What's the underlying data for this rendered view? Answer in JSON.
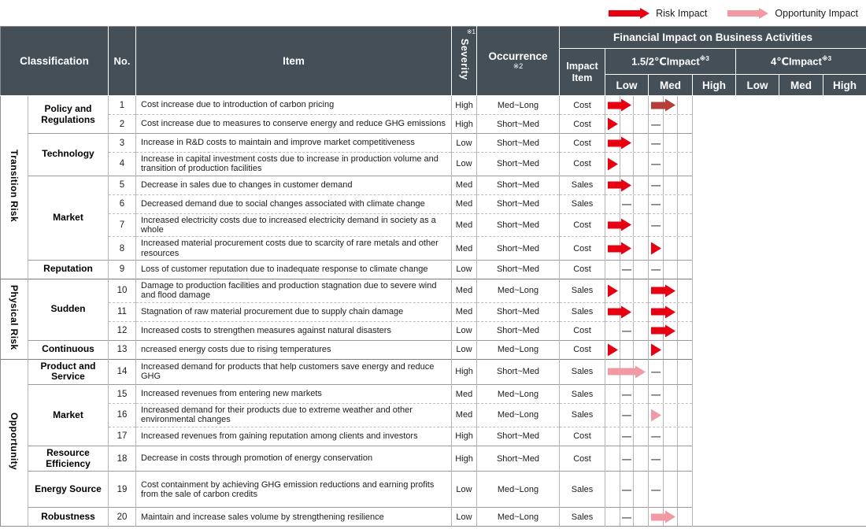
{
  "legend": {
    "risk_label": "Risk Impact",
    "opportunity_label": "Opportunity Impact"
  },
  "colors": {
    "risk": "#e60012",
    "risk_dark": "#b43f3a",
    "opportunity": "#f29aa3",
    "header_bg": "#454f58"
  },
  "marks": {
    "none": "—"
  },
  "header": {
    "classification": "Classification",
    "no": "No.",
    "item": "Item",
    "severity": "Severity",
    "severity_note": "※1",
    "occurrence": "Occurrence",
    "occurrence_note": "※2",
    "financial": "Financial Impact on Business Activities",
    "impact_item": "Impact Item",
    "scenario_15": "1.5/2℃Impact",
    "scenario_4": "4℃Impact",
    "scenario_note": "※3",
    "levels": [
      "Low",
      "Med",
      "High"
    ]
  },
  "groups": [
    {
      "classification": "Transition Risk",
      "subgroups": [
        {
          "label": "Policy and Regulations",
          "rows": [
            {
              "no": "1",
              "item": "Cost increase due to introduction of carbon pricing",
              "severity": "High",
              "occurrence": "Med~Long",
              "impact_item": "Cost",
              "impact_15": {
                "arrow": "risk",
                "span": 2
              },
              "impact_4": {
                "arrow": "risk-dark",
                "span": 2
              }
            },
            {
              "no": "2",
              "item": "Cost increase due to measures to conserve energy and reduce GHG emissions",
              "severity": "High",
              "occurrence": "Short~Med",
              "impact_item": "Cost",
              "impact_15": {
                "arrow": "risk",
                "span": 1
              },
              "impact_4": {
                "arrow": "none"
              }
            }
          ]
        },
        {
          "label": "Technology",
          "rows": [
            {
              "no": "3",
              "item": "Increase in R&D costs to maintain and improve market competitiveness",
              "severity": "Low",
              "occurrence": "Short~Med",
              "impact_item": "Cost",
              "impact_15": {
                "arrow": "risk",
                "span": 2
              },
              "impact_4": {
                "arrow": "none"
              }
            },
            {
              "no": "4",
              "item": "Increase in capital investment costs due to increase in production volume and transition of production facilities",
              "severity": "Low",
              "occurrence": "Short~Med",
              "impact_item": "Cost",
              "impact_15": {
                "arrow": "risk",
                "span": 1
              },
              "impact_4": {
                "arrow": "none"
              }
            }
          ]
        },
        {
          "label": "Market",
          "rows": [
            {
              "no": "5",
              "item": "Decrease in sales due to changes in customer demand",
              "severity": "Med",
              "occurrence": "Short~Med",
              "impact_item": "Sales",
              "impact_15": {
                "arrow": "risk",
                "span": 2
              },
              "impact_4": {
                "arrow": "none"
              }
            },
            {
              "no": "6",
              "item": "Decreased demand due to social changes associated with climate change",
              "severity": "Med",
              "occurrence": "Short~Med",
              "impact_item": "Sales",
              "impact_15": {
                "arrow": "none"
              },
              "impact_4": {
                "arrow": "none"
              }
            },
            {
              "no": "7",
              "item": "Increased electricity costs due to increased electricity demand in society as a whole",
              "severity": "Med",
              "occurrence": "Short~Med",
              "impact_item": "Cost",
              "impact_15": {
                "arrow": "risk",
                "span": 2
              },
              "impact_4": {
                "arrow": "none"
              }
            },
            {
              "no": "8",
              "item": "Increased material procurement costs due to scarcity of rare metals and other resources",
              "severity": "Med",
              "occurrence": "Short~Med",
              "impact_item": "Cost",
              "impact_15": {
                "arrow": "risk",
                "span": 2
              },
              "impact_4": {
                "arrow": "risk",
                "span": 1
              }
            }
          ]
        },
        {
          "label": "Reputation",
          "rows": [
            {
              "no": "9",
              "item": "Loss of customer reputation due to inadequate response to climate change",
              "severity": "Low",
              "occurrence": "Short~Med",
              "impact_item": "Cost",
              "impact_15": {
                "arrow": "none"
              },
              "impact_4": {
                "arrow": "none"
              }
            }
          ]
        }
      ]
    },
    {
      "classification": "Physical Risk",
      "subgroups": [
        {
          "label": "Sudden",
          "rows": [
            {
              "no": "10",
              "item": "Damage to production facilities and production stagnation due to severe wind and flood damage",
              "severity": "Med",
              "occurrence": "Med~Long",
              "impact_item": "Sales",
              "impact_15": {
                "arrow": "risk",
                "span": 1
              },
              "impact_4": {
                "arrow": "risk",
                "span": 2
              }
            },
            {
              "no": "11",
              "item": "Stagnation of raw material procurement due to supply chain damage",
              "severity": "Med",
              "occurrence": "Short~Med",
              "impact_item": "Sales",
              "impact_15": {
                "arrow": "risk",
                "span": 2
              },
              "impact_4": {
                "arrow": "risk",
                "span": 2
              }
            },
            {
              "no": "12",
              "item": "Increased costs to strengthen measures against natural disasters",
              "severity": "Low",
              "occurrence": "Short~Med",
              "impact_item": "Cost",
              "impact_15": {
                "arrow": "none"
              },
              "impact_4": {
                "arrow": "risk",
                "span": 2
              }
            }
          ]
        },
        {
          "label": "Continuous",
          "rows": [
            {
              "no": "13",
              "item": "ncreased energy costs due to rising temperatures",
              "severity": "Low",
              "occurrence": "Med~Long",
              "impact_item": "Cost",
              "impact_15": {
                "arrow": "risk",
                "span": 1
              },
              "impact_4": {
                "arrow": "risk",
                "span": 1
              }
            }
          ]
        }
      ]
    },
    {
      "classification": "Opportunity",
      "subgroups": [
        {
          "label": "Product and Service",
          "rows": [
            {
              "no": "14",
              "item": "Increased demand for products that help customers save energy and reduce GHG",
              "severity": "High",
              "occurrence": "Short~Med",
              "impact_item": "Sales",
              "impact_15": {
                "arrow": "opportunity",
                "span": 3
              },
              "impact_4": {
                "arrow": "none"
              }
            }
          ]
        },
        {
          "label": "Market",
          "rows": [
            {
              "no": "15",
              "item": "Increased revenues from entering new markets",
              "severity": "Med",
              "occurrence": "Med~Long",
              "impact_item": "Sales",
              "impact_15": {
                "arrow": "none"
              },
              "impact_4": {
                "arrow": "none"
              }
            },
            {
              "no": "16",
              "item": "Increased demand for their products due to extreme weather and other environmental changes",
              "severity": "Med",
              "occurrence": "Med~Long",
              "impact_item": "Sales",
              "impact_15": {
                "arrow": "none"
              },
              "impact_4": {
                "arrow": "opportunity",
                "span": 1
              }
            },
            {
              "no": "17",
              "item": "Increased revenues from gaining reputation among clients and investors",
              "severity": "High",
              "occurrence": "Short~Med",
              "impact_item": "Cost",
              "impact_15": {
                "arrow": "none"
              },
              "impact_4": {
                "arrow": "none"
              }
            }
          ]
        },
        {
          "label": "Resource Efficiency",
          "rows": [
            {
              "no": "18",
              "item": "Decrease in costs through promotion of energy conservation",
              "severity": "High",
              "occurrence": "Short~Med",
              "impact_item": "Cost",
              "impact_15": {
                "arrow": "none"
              },
              "impact_4": {
                "arrow": "none"
              }
            }
          ]
        },
        {
          "label": "Energy Source",
          "rows": [
            {
              "no": "19",
              "item": "Cost containment by achieving GHG emission reductions and earning profits from the sale of carbon credits",
              "severity": "Low",
              "occurrence": "Med~Long",
              "impact_item": "Sales",
              "impact_15": {
                "arrow": "none"
              },
              "impact_4": {
                "arrow": "none"
              }
            }
          ]
        },
        {
          "label": "Robustness",
          "rows": [
            {
              "no": "20",
              "item": "Maintain and increase sales volume by strengthening resilience",
              "severity": "Low",
              "occurrence": "Med~Long",
              "impact_item": "Sales",
              "impact_15": {
                "arrow": "none"
              },
              "impact_4": {
                "arrow": "opportunity",
                "span": 2
              }
            }
          ]
        }
      ]
    }
  ]
}
